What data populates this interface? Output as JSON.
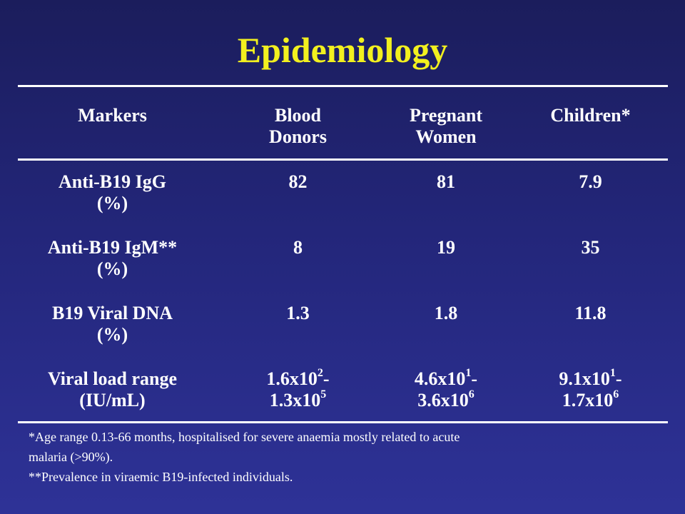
{
  "slide": {
    "title": "Epidemiology"
  },
  "table": {
    "headers": [
      [
        "Markers"
      ],
      [
        "Blood",
        "Donors"
      ],
      [
        "Pregnant",
        "Women"
      ],
      [
        "Children*"
      ]
    ],
    "rows": [
      {
        "marker": [
          "Anti-B19 IgG",
          "(%)"
        ],
        "blood_donors": "82",
        "pregnant_women": "81",
        "children": "7.9"
      },
      {
        "marker": [
          "Anti-B19 IgM**",
          "(%)"
        ],
        "blood_donors": "8",
        "pregnant_women": "19",
        "children": "35"
      },
      {
        "marker": [
          "B19 Viral DNA",
          "(%)"
        ],
        "blood_donors": "1.3",
        "pregnant_women": "1.8",
        "children": "11.8"
      }
    ],
    "viral_load_row": {
      "marker": [
        "Viral load range",
        "(IU/mL)"
      ],
      "blood_donors": {
        "line1_base": "1.6x10",
        "line1_exp": "2",
        "line1_suffix": "-",
        "line2_base": "1.3x10",
        "line2_exp": "5"
      },
      "pregnant_women": {
        "line1_base": "4.6x10",
        "line1_exp": "1",
        "line1_suffix": "-",
        "line2_base": "3.6x10",
        "line2_exp": "6"
      },
      "children": {
        "line1_base": "9.1x10",
        "line1_exp": "1",
        "line1_suffix": "-",
        "line2_base": "1.7x10",
        "line2_exp": "6"
      }
    }
  },
  "footnotes": {
    "line1": "*Age range 0.13-66 months, hospitalised for severe anaemia mostly related to acute",
    "line2": "malaria (>90%).",
    "line3": "**Prevalence in viraemic B19-infected individuals."
  }
}
